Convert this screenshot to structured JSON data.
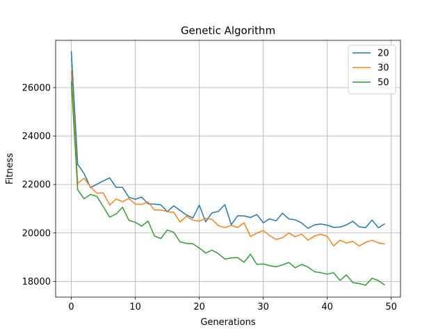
{
  "chart_data": {
    "type": "line",
    "title": "Genetic Algorithm",
    "xlabel": "Generations",
    "ylabel": "Fitness",
    "xlim": [
      -2.45,
      51.45
    ],
    "ylim": [
      17350,
      27950
    ],
    "xticks": [
      0,
      10,
      20,
      30,
      40,
      50
    ],
    "yticks": [
      18000,
      20000,
      22000,
      24000,
      26000
    ],
    "grid": true,
    "legend_position": "top-right",
    "x": [
      0,
      1,
      2,
      3,
      4,
      5,
      6,
      7,
      8,
      9,
      10,
      11,
      12,
      13,
      14,
      15,
      16,
      17,
      18,
      19,
      20,
      21,
      22,
      23,
      24,
      25,
      26,
      27,
      28,
      29,
      30,
      31,
      32,
      33,
      34,
      35,
      36,
      37,
      38,
      39,
      40,
      41,
      42,
      43,
      44,
      45,
      46,
      47,
      48,
      49
    ],
    "series": [
      {
        "name": "20",
        "color": "#1f77b4",
        "values": [
          27500,
          22830,
          22450,
          21870,
          22010,
          22150,
          22270,
          21880,
          21880,
          21470,
          21390,
          21480,
          21200,
          21190,
          21160,
          20880,
          21120,
          20930,
          20740,
          20620,
          21150,
          20460,
          20830,
          20890,
          21170,
          20340,
          20710,
          20700,
          20640,
          20760,
          20420,
          20580,
          20500,
          20810,
          20580,
          20540,
          20410,
          20190,
          20330,
          20370,
          20320,
          20230,
          20240,
          20330,
          20480,
          20250,
          20220,
          20530,
          20210,
          20380
        ]
      },
      {
        "name": "30",
        "color": "#ff7f0e",
        "values": [
          26710,
          22040,
          22260,
          21900,
          21640,
          21650,
          21150,
          21400,
          21290,
          21420,
          21190,
          21180,
          21280,
          20940,
          20950,
          20880,
          20850,
          20450,
          20690,
          20530,
          20480,
          20600,
          20560,
          20300,
          20220,
          20310,
          20220,
          20420,
          19850,
          19990,
          20100,
          19890,
          19730,
          19800,
          20000,
          19840,
          19950,
          19700,
          19870,
          19950,
          19860,
          19460,
          19700,
          19580,
          19650,
          19460,
          19610,
          19700,
          19590,
          19540
        ]
      },
      {
        "name": "50",
        "color": "#2ca02c",
        "values": [
          26250,
          21780,
          21410,
          21590,
          21510,
          21080,
          20650,
          20780,
          21060,
          20520,
          20440,
          20280,
          20490,
          19870,
          19770,
          20120,
          20030,
          19630,
          19570,
          19550,
          19380,
          19170,
          19290,
          19140,
          18920,
          18970,
          18980,
          18790,
          19120,
          18700,
          18720,
          18650,
          18600,
          18680,
          18780,
          18560,
          18700,
          18590,
          18400,
          18360,
          18300,
          18360,
          18040,
          18270,
          17950,
          17910,
          17840,
          18130,
          18030,
          17850
        ]
      }
    ]
  }
}
